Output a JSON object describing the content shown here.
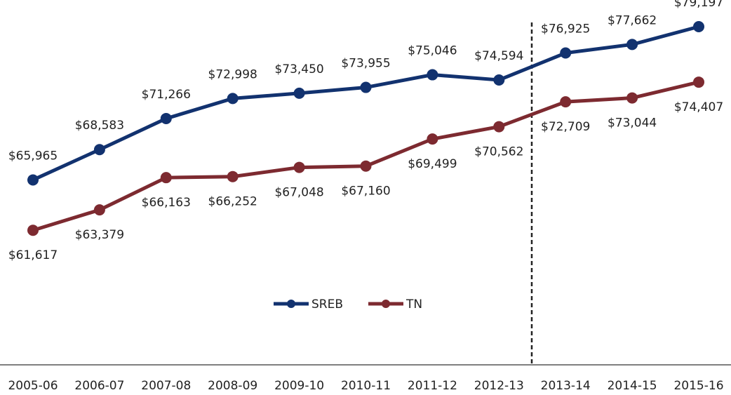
{
  "chart_data": {
    "type": "line",
    "categories": [
      "2005-06",
      "2006-07",
      "2007-08",
      "2008-09",
      "2009-10",
      "2010-11",
      "2011-12",
      "2012-13",
      "2013-14",
      "2014-15",
      "2015-16"
    ],
    "series": [
      {
        "name": "SREB",
        "color": "#12326f",
        "values": [
          65965,
          68583,
          71266,
          72998,
          73450,
          73955,
          75046,
          74594,
          76925,
          77662,
          79197
        ],
        "value_labels": [
          "$65,965",
          "$68,583",
          "$71,266",
          "$72,998",
          "$73,450",
          "$73,955",
          "$75,046",
          "$74,594",
          "$76,925",
          "$77,662",
          "$79,197"
        ]
      },
      {
        "name": "TN",
        "color": "#7d2a30",
        "values": [
          61617,
          63379,
          66163,
          66252,
          67048,
          67160,
          69499,
          70562,
          72709,
          73044,
          74407
        ],
        "value_labels": [
          "$61,617",
          "$63,379",
          "$66,163",
          "$66,252",
          "$67,048",
          "$67,160",
          "$69,499",
          "$70,562",
          "$72,709",
          "$73,044",
          "$74,407"
        ]
      }
    ],
    "ylim": [
      50000,
      81500
    ]
  }
}
